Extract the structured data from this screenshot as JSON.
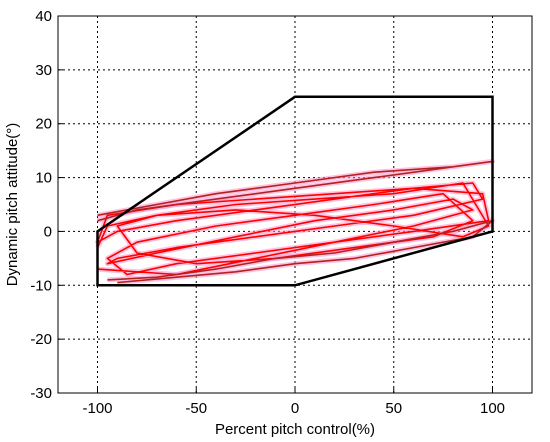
{
  "chart_data": {
    "type": "line",
    "title": "",
    "xlabel": "Percent pitch control(%)",
    "ylabel": "Dynamic pitch attitude(°)",
    "xlim": [
      -120,
      120
    ],
    "ylim": [
      -30,
      40
    ],
    "xticks": [
      -100,
      -50,
      0,
      50,
      100
    ],
    "yticks": [
      -30,
      -20,
      -10,
      0,
      10,
      20,
      30,
      40
    ],
    "grid": true,
    "colors": {
      "boundary": "#000000",
      "trajectory_red": "#ff0000",
      "trajectory_dark": "#b22222",
      "trajectory_halo": "#ff99cc"
    },
    "series": [
      {
        "x": [
          -100,
          -100,
          0,
          100,
          100,
          100,
          0,
          -100
        ],
        "y": [
          -10,
          0,
          25,
          25,
          0,
          0,
          -10,
          -10
        ]
      },
      {
        "x": [
          -100,
          -60,
          -20,
          20,
          60,
          98,
          95,
          60,
          20,
          -20,
          -60,
          -90,
          -100,
          -95,
          -60,
          -20,
          20,
          60,
          90,
          95,
          60,
          20,
          -20,
          -60,
          -90,
          -95,
          -70,
          -30,
          10,
          50,
          80,
          90,
          60,
          20,
          -20,
          -60,
          -85,
          -95,
          -80,
          -40,
          0,
          40,
          75,
          90,
          70,
          30,
          -10,
          -50,
          -80,
          -90,
          -70,
          -30,
          10,
          50,
          85,
          98,
          85,
          50,
          10,
          -30,
          -70,
          -95,
          -100
        ],
        "y": [
          -7,
          -8,
          -5,
          -2,
          0,
          2,
          7,
          8,
          6,
          4,
          2,
          0,
          -2,
          3,
          5,
          6,
          7,
          8,
          9,
          6,
          3,
          1,
          -1,
          -3,
          -5,
          -6,
          -4,
          -1,
          2,
          4,
          6,
          4,
          1,
          -2,
          -4,
          -6,
          -8,
          -5,
          -2,
          1,
          3,
          5,
          7,
          2,
          -1,
          -3,
          -5,
          -6,
          -4,
          1,
          3,
          5,
          6,
          7,
          9,
          1,
          -1,
          1,
          3,
          4,
          3,
          1,
          -3
        ]
      },
      {
        "x": [
          -100,
          -70,
          -40,
          0,
          40,
          80,
          100,
          100,
          80,
          40,
          0,
          -40,
          -80,
          -100
        ],
        "y": [
          3,
          5,
          7,
          9,
          11,
          12,
          13,
          13,
          12,
          10,
          8,
          6,
          4,
          2
        ]
      },
      {
        "x": [
          -95,
          -70,
          -40,
          -10,
          20,
          50,
          80,
          100,
          90,
          60,
          30,
          0,
          -30,
          -60,
          -90
        ],
        "y": [
          -9,
          -8.5,
          -7,
          -5,
          -4,
          -2,
          0,
          2,
          -1,
          -3,
          -5,
          -6,
          -7.5,
          -8.5,
          -9.5
        ]
      }
    ]
  }
}
